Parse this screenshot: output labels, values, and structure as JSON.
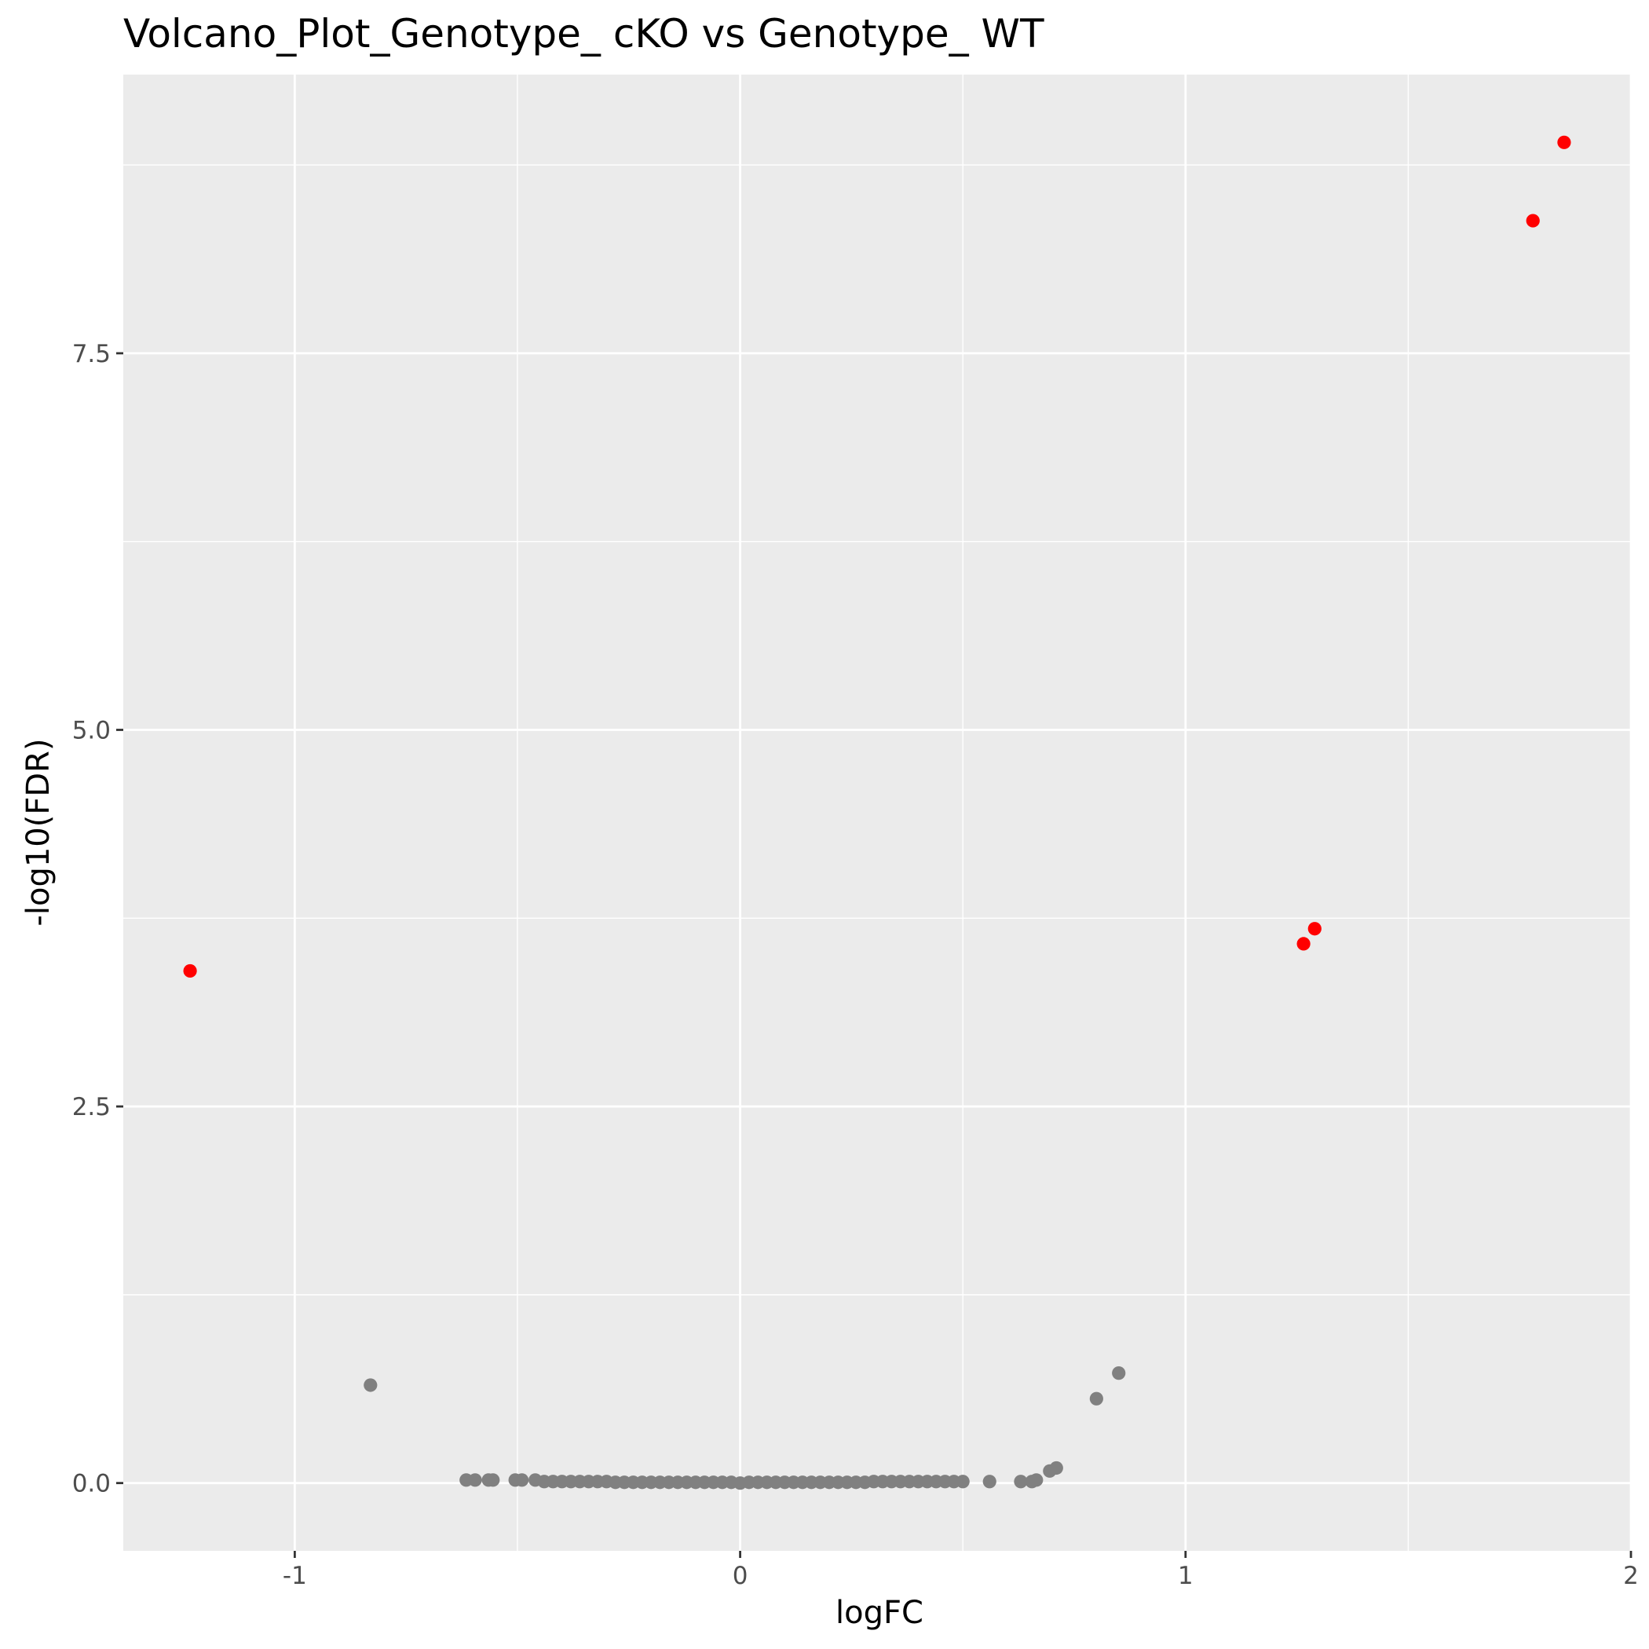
{
  "chart_data": {
    "type": "scatter",
    "title": "Volcano_Plot_Genotype_ cKO vs Genotype_ WT",
    "xlabel": "logFC",
    "ylabel": "-log10(FDR)",
    "xlim": [
      -1.385,
      2.0
    ],
    "ylim": [
      -0.45,
      9.35
    ],
    "x_ticks": [
      -1,
      0,
      1,
      2
    ],
    "x_tick_labels": [
      "-1",
      "0",
      "1",
      "2"
    ],
    "y_ticks": [
      0,
      2.5,
      5,
      7.5
    ],
    "y_tick_labels": [
      "0.0",
      "2.5",
      "5.0",
      "7.5"
    ],
    "grid": true,
    "legend": "none",
    "colors": {
      "panel_background": "#ebebeb",
      "grid_line": "#ffffff",
      "significant": "#ff0000",
      "not_significant": "#808080",
      "tick_label": "#4d4d4d",
      "axis_tick": "#333333"
    },
    "series": [
      {
        "points": [
          {
            "x": 1.85,
            "y": 8.9
          },
          {
            "x": 1.78,
            "y": 8.38
          },
          {
            "x": 1.29,
            "y": 3.68
          },
          {
            "x": 1.265,
            "y": 3.58
          },
          {
            "x": -1.235,
            "y": 3.4
          }
        ]
      },
      {
        "points": [
          {
            "x": -0.83,
            "y": 0.65
          },
          {
            "x": 0.85,
            "y": 0.73
          },
          {
            "x": 0.8,
            "y": 0.56
          },
          {
            "x": 0.71,
            "y": 0.1
          },
          {
            "x": 0.695,
            "y": 0.08
          },
          {
            "x": 0.665,
            "y": 0.02
          },
          {
            "x": 0.655,
            "y": 0.01
          },
          {
            "x": 0.63,
            "y": 0.01
          },
          {
            "x": 0.56,
            "y": 0.01
          },
          {
            "x": -0.615,
            "y": 0.02
          },
          {
            "x": -0.595,
            "y": 0.02
          },
          {
            "x": -0.565,
            "y": 0.02
          },
          {
            "x": -0.555,
            "y": 0.02
          },
          {
            "x": -0.505,
            "y": 0.02
          },
          {
            "x": -0.49,
            "y": 0.02
          },
          {
            "x": -0.46,
            "y": 0.02
          },
          {
            "x": -0.44,
            "y": 0.01
          },
          {
            "x": -0.42,
            "y": 0.01
          },
          {
            "x": -0.4,
            "y": 0.01
          },
          {
            "x": -0.38,
            "y": 0.01
          },
          {
            "x": -0.36,
            "y": 0.01
          },
          {
            "x": -0.34,
            "y": 0.01
          },
          {
            "x": -0.32,
            "y": 0.01
          },
          {
            "x": -0.3,
            "y": 0.01
          },
          {
            "x": -0.28,
            "y": 0.005
          },
          {
            "x": -0.26,
            "y": 0.005
          },
          {
            "x": -0.24,
            "y": 0.005
          },
          {
            "x": -0.22,
            "y": 0.005
          },
          {
            "x": -0.2,
            "y": 0.005
          },
          {
            "x": -0.18,
            "y": 0.005
          },
          {
            "x": -0.16,
            "y": 0.005
          },
          {
            "x": -0.14,
            "y": 0.005
          },
          {
            "x": -0.12,
            "y": 0.005
          },
          {
            "x": -0.1,
            "y": 0.005
          },
          {
            "x": -0.08,
            "y": 0.005
          },
          {
            "x": -0.06,
            "y": 0.005
          },
          {
            "x": -0.04,
            "y": 0.005
          },
          {
            "x": -0.02,
            "y": 0.005
          },
          {
            "x": 0.0,
            "y": 0.0
          },
          {
            "x": 0.02,
            "y": 0.005
          },
          {
            "x": 0.04,
            "y": 0.005
          },
          {
            "x": 0.06,
            "y": 0.005
          },
          {
            "x": 0.08,
            "y": 0.005
          },
          {
            "x": 0.1,
            "y": 0.005
          },
          {
            "x": 0.12,
            "y": 0.005
          },
          {
            "x": 0.14,
            "y": 0.005
          },
          {
            "x": 0.16,
            "y": 0.005
          },
          {
            "x": 0.18,
            "y": 0.005
          },
          {
            "x": 0.2,
            "y": 0.005
          },
          {
            "x": 0.22,
            "y": 0.005
          },
          {
            "x": 0.24,
            "y": 0.005
          },
          {
            "x": 0.26,
            "y": 0.005
          },
          {
            "x": 0.28,
            "y": 0.005
          },
          {
            "x": 0.3,
            "y": 0.01
          },
          {
            "x": 0.32,
            "y": 0.01
          },
          {
            "x": 0.34,
            "y": 0.01
          },
          {
            "x": 0.36,
            "y": 0.01
          },
          {
            "x": 0.38,
            "y": 0.01
          },
          {
            "x": 0.4,
            "y": 0.01
          },
          {
            "x": 0.42,
            "y": 0.01
          },
          {
            "x": 0.44,
            "y": 0.01
          },
          {
            "x": 0.46,
            "y": 0.01
          },
          {
            "x": 0.48,
            "y": 0.01
          },
          {
            "x": 0.5,
            "y": 0.01
          }
        ]
      }
    ]
  }
}
